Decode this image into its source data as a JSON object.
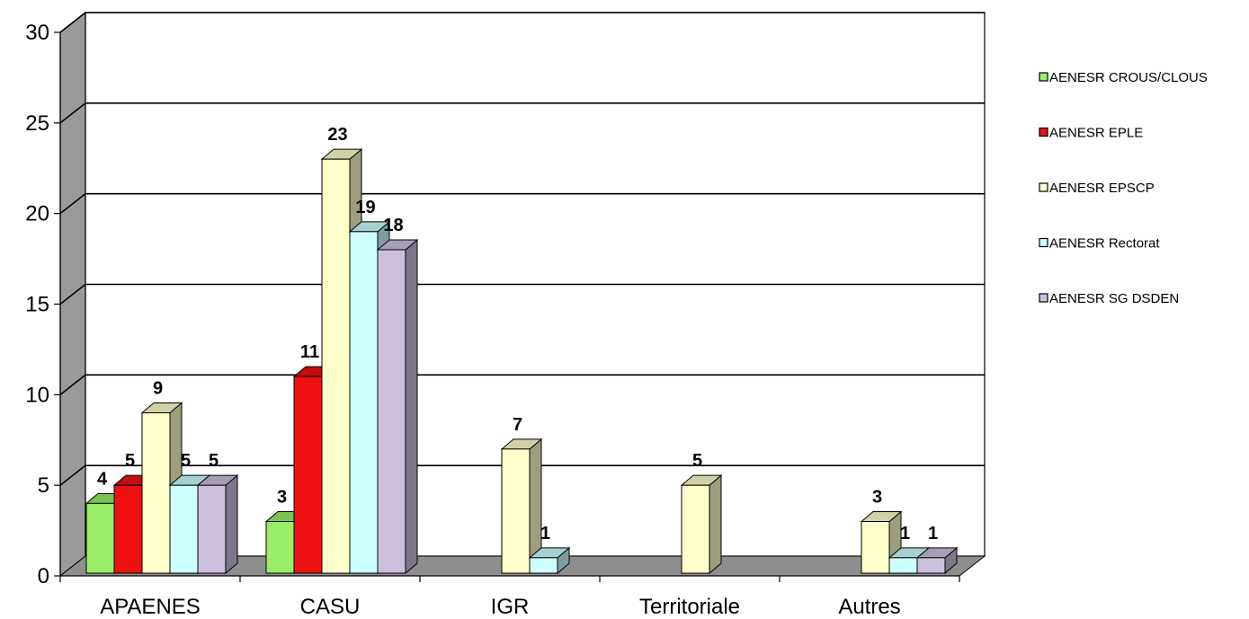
{
  "chart_data": {
    "type": "bar",
    "three_d": true,
    "categories": [
      "APAENES",
      "CASU",
      "IGR",
      "Territoriale",
      "Autres"
    ],
    "series": [
      {
        "name": "AENESR CROUS/CLOUS",
        "color": "#99ee66",
        "values": [
          4,
          3,
          null,
          null,
          null
        ]
      },
      {
        "name": "AENESR EPLE",
        "color": "#ee1111",
        "values": [
          5,
          11,
          null,
          null,
          null
        ]
      },
      {
        "name": "AENESR EPSCP",
        "color": "#ffffcc",
        "values": [
          9,
          23,
          7,
          5,
          3
        ]
      },
      {
        "name": "AENESR Rectorat",
        "color": "#ccffff",
        "values": [
          5,
          19,
          1,
          null,
          1
        ]
      },
      {
        "name": "AENESR SG DSDEN",
        "color": "#ccc0dd",
        "values": [
          5,
          18,
          null,
          null,
          1
        ]
      }
    ],
    "ylim": [
      0,
      30
    ],
    "yticks": [
      0,
      5,
      10,
      15,
      20,
      25,
      30
    ],
    "grid": true,
    "legend": "right",
    "data_labels": true,
    "title": "",
    "xlabel": "",
    "ylabel": ""
  }
}
